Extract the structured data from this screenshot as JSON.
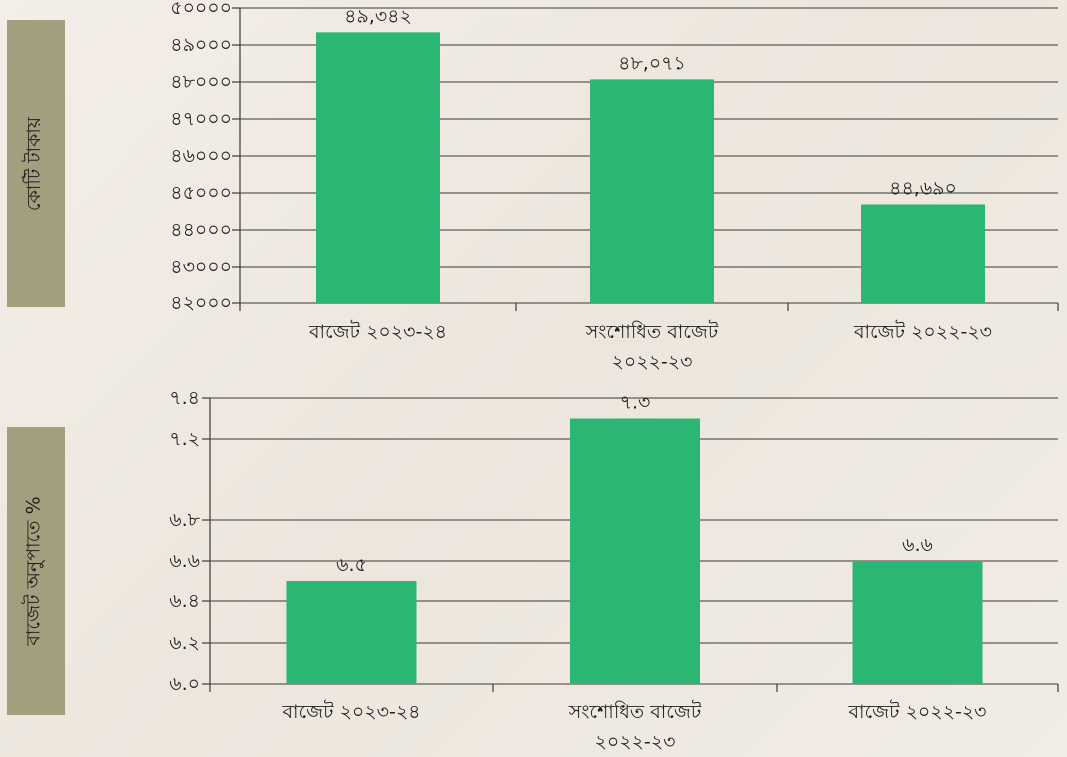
{
  "colors": {
    "bar": "#2bb673",
    "grid": "#3a3a3a",
    "label_box": "#a39e7e"
  },
  "chart_data": [
    {
      "type": "bar",
      "ylabel": "কোটি টাকায়",
      "categories": [
        [
          "বাজেট ২০২৩-২৪"
        ],
        [
          "সংশোধিত বাজেট",
          "২০২২-২৩"
        ],
        [
          "বাজেট ২০২২-২৩"
        ]
      ],
      "values": [
        49342,
        48071,
        44690
      ],
      "data_labels": [
        "৪৯,৩৪২",
        "৪৮,০৭১",
        "৪৪,৬৯০"
      ],
      "ylim": [
        42000,
        50000
      ],
      "ticks": [
        42000,
        43000,
        44000,
        45000,
        46000,
        47000,
        48000,
        49000,
        50000
      ],
      "tick_labels": [
        "৪২০০০",
        "৪৩০০০",
        "৪৪০০০",
        "৪৫০০০",
        "৪৬০০০",
        "৪৭০০০",
        "৪৮০০০",
        "৪৯০০০",
        "৫০০০০"
      ],
      "grid": true
    },
    {
      "type": "bar",
      "ylabel": "বাজেট অনুপাতে %",
      "categories": [
        [
          "বাজেট ২০২৩-২৪"
        ],
        [
          "সংশোধিত বাজেট",
          "২০২২-২৩"
        ],
        [
          "বাজেট ২০২২-২৩"
        ]
      ],
      "values": [
        6.5,
        7.3,
        6.6
      ],
      "data_labels": [
        "৬.৫",
        "৭.৩",
        "৬.৬"
      ],
      "ylim": [
        6.0,
        7.4
      ],
      "ticks": [
        6.0,
        6.2,
        6.4,
        6.6,
        6.8,
        7.2,
        7.4
      ],
      "tick_labels": [
        "৬.০",
        "৬.২",
        "৬.৪",
        "৬.৬",
        "৬.৮",
        "৭.২",
        "৭.৪"
      ],
      "grid": true
    }
  ]
}
